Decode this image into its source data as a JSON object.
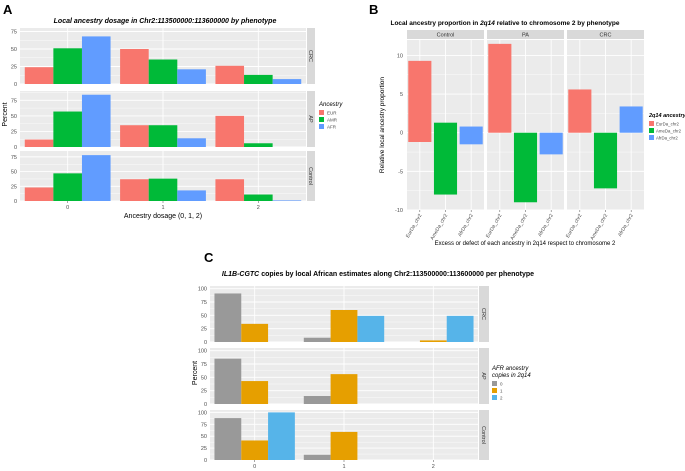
{
  "colors": {
    "panel_bg": "#ebebeb",
    "strip_bg": "#d9d9d9",
    "grid": "#ffffff",
    "text": "#333333",
    "axis_text": "#4d4d4d",
    "EUR": "#f8766d",
    "AMR": "#00ba38",
    "AFR": "#619cff",
    "copies_0": "#999999",
    "copies_1": "#e69f00",
    "copies_2": "#56b4e9"
  },
  "chart_data": [
    {
      "panel_label": "A",
      "type": "bar",
      "title": "Local ancestry dosage in Chr2:113500000:113600000 by phenotype",
      "xlabel": "Ancestry dosage (0, 1, 2)",
      "ylabel": "Percent",
      "categories": [
        "0",
        "1",
        "2"
      ],
      "yticks": [
        "0",
        "25",
        "50",
        "75"
      ],
      "legend": {
        "title": "Ancestry",
        "position": "right",
        "entries": [
          "EUR",
          "AMR",
          "AFR"
        ]
      },
      "facets": [
        {
          "name": "CRC",
          "ylim": [
            0,
            80
          ],
          "series": [
            {
              "name": "EUR",
              "values": [
                24,
                50,
                26
              ]
            },
            {
              "name": "AMR",
              "values": [
                51,
                35,
                13
              ]
            },
            {
              "name": "AFR",
              "values": [
                68,
                21,
                7
              ]
            }
          ]
        },
        {
          "name": "AP",
          "ylim": [
            0,
            90
          ],
          "series": [
            {
              "name": "EUR",
              "values": [
                12,
                35,
                50
              ]
            },
            {
              "name": "AMR",
              "values": [
                57,
                35,
                6
              ]
            },
            {
              "name": "AFR",
              "values": [
                84,
                14,
                0
              ]
            }
          ]
        },
        {
          "name": "Control",
          "ylim": [
            0,
            85
          ],
          "series": [
            {
              "name": "EUR",
              "values": [
                23,
                37,
                37
              ]
            },
            {
              "name": "AMR",
              "values": [
                47,
                38,
                11
              ]
            },
            {
              "name": "AFR",
              "values": [
                78,
                18,
                1
              ]
            }
          ]
        }
      ]
    },
    {
      "panel_label": "B",
      "type": "bar",
      "title": "Local ancestry proportion in 2q14 relative to chromosome 2 by phenotype",
      "title_parts": [
        "Local ancestry proportion in ",
        "2q14",
        " relative to chromosome 2 by phenotype"
      ],
      "xlabel": "Excess or defect of each ancestry in 2q14 respect to chromosome 2",
      "ylabel": "Relative local ancestry proportion",
      "categories": [
        "EurDa_chr2",
        "AmeDa_chr2",
        "AfrDa_chr2"
      ],
      "ylim": [
        -10,
        12
      ],
      "yticks": [
        "-10",
        "-5",
        "0",
        "5",
        "10"
      ],
      "legend": {
        "title": "2q14 ancestry",
        "position": "right",
        "entries": [
          "EurDa_chr2",
          "AmeDa_chr2",
          "AfrDa_chr2"
        ]
      },
      "facets": [
        {
          "name": "Control",
          "bars": [
            {
              "name": "EurDa_chr2",
              "low": -1.2,
              "high": 9.3
            },
            {
              "name": "AmeDa_chr2",
              "low": -8,
              "high": 1.3
            },
            {
              "name": "AfrDa_chr2",
              "low": -1.5,
              "high": 0.8
            }
          ]
        },
        {
          "name": "PA",
          "bars": [
            {
              "name": "EurDa_chr2",
              "low": 0,
              "high": 11.5
            },
            {
              "name": "AmeDa_chr2",
              "low": -9,
              "high": 0
            },
            {
              "name": "AfrDa_chr2",
              "low": -2.8,
              "high": 0
            }
          ]
        },
        {
          "name": "CRC",
          "bars": [
            {
              "name": "EurDa_chr2",
              "low": 0,
              "high": 5.6
            },
            {
              "name": "AmeDa_chr2",
              "low": -7.2,
              "high": 0
            },
            {
              "name": "AfrDa_chr2",
              "low": 0,
              "high": 3.4
            }
          ]
        }
      ]
    },
    {
      "panel_label": "C",
      "type": "bar",
      "title": "IL1B-CGTC copies by local African estimates along Chr2:113500000:113600000 per phenotype",
      "title_parts": [
        "IL1B-CGTC",
        " copies by local African estimates along Chr2:113500000:113600000 per phenotype"
      ],
      "xlabel": "IL1B-CGTC copies (0, 1, 2)",
      "xlabel_parts": [
        "IL1B-CGTC",
        " copies (0, 1, 2)"
      ],
      "ylabel": "Percent",
      "categories": [
        "0",
        "1",
        "2"
      ],
      "yticks": [
        "0",
        "25",
        "50",
        "75",
        "100"
      ],
      "legend": {
        "title": "AFR ancestry copies in 2q14",
        "title_lines": [
          "AFR ancestry",
          "copies in 2q14"
        ],
        "position": "right",
        "entries": [
          "0",
          "1",
          "2"
        ]
      },
      "facets": [
        {
          "name": "CRC",
          "ylim": [
            0,
            105
          ],
          "series": [
            {
              "name": "0",
              "values": [
                91,
                8,
                0
              ]
            },
            {
              "name": "1",
              "values": [
                34,
                60,
                3
              ]
            },
            {
              "name": "2",
              "values": [
                0,
                49,
                49
              ]
            }
          ]
        },
        {
          "name": "AP",
          "ylim": [
            0,
            105
          ],
          "series": [
            {
              "name": "0",
              "values": [
                85,
                15,
                0
              ]
            },
            {
              "name": "1",
              "values": [
                43,
                56,
                0
              ]
            },
            {
              "name": "2",
              "values": [
                0,
                0,
                0
              ]
            }
          ]
        },
        {
          "name": "Control",
          "ylim": [
            0,
            105
          ],
          "series": [
            {
              "name": "0",
              "values": [
                88,
                11,
                0
              ]
            },
            {
              "name": "1",
              "values": [
                41,
                59,
                0
              ]
            },
            {
              "name": "2",
              "values": [
                100,
                0,
                0
              ]
            }
          ]
        }
      ]
    }
  ]
}
